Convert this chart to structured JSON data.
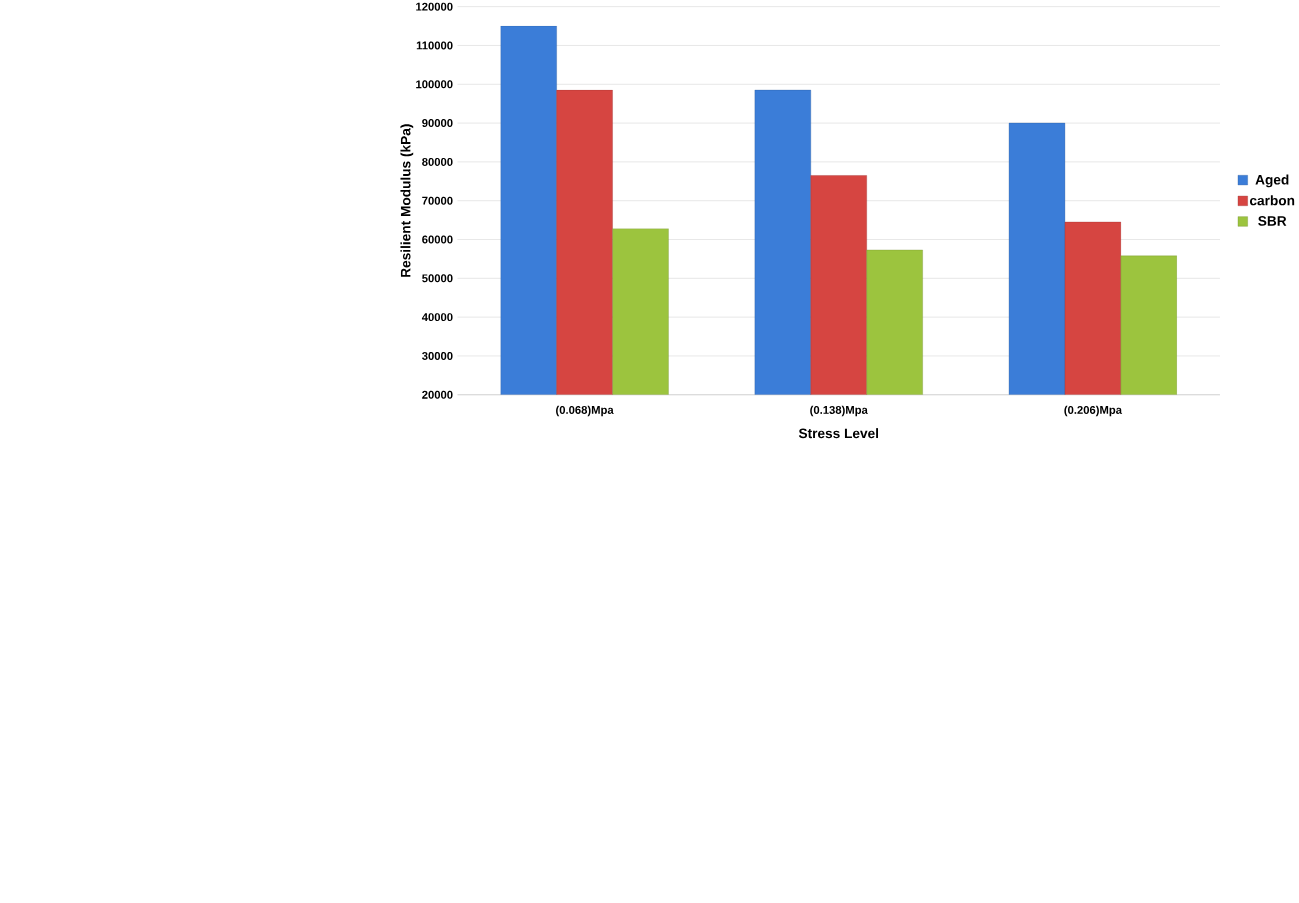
{
  "chart_data": {
    "type": "bar",
    "xlabel": "Stress Level",
    "ylabel": "Resilient Modulus (kPa)",
    "categories": [
      "(0.068)Mpa",
      "(0.138)Mpa",
      "(0.206)Mpa"
    ],
    "series": [
      {
        "name": "Aged",
        "color": "#3b7dd8",
        "values": [
          115000,
          98500,
          90000
        ]
      },
      {
        "name": "carbon",
        "color": "#d64541",
        "values": [
          98500,
          76500,
          64500
        ]
      },
      {
        "name": "SBR",
        "color": "#9cc43e",
        "values": [
          62800,
          57300,
          55800
        ]
      }
    ],
    "ylim": [
      20000,
      120000
    ],
    "yticks": [
      20000,
      30000,
      40000,
      50000,
      60000,
      70000,
      80000,
      90000,
      100000,
      110000,
      120000
    ],
    "grid": "y",
    "legend": "right"
  }
}
